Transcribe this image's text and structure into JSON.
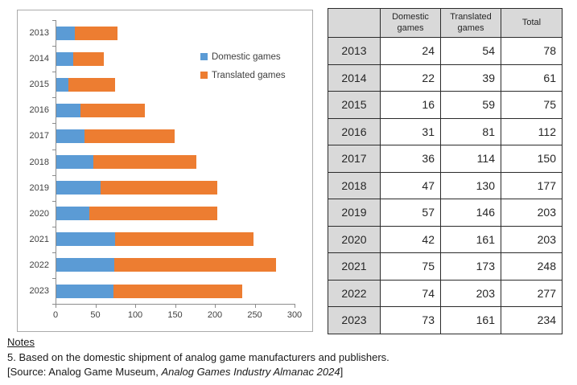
{
  "chart_data": {
    "type": "bar",
    "orientation": "horizontal",
    "stacked": true,
    "title": "",
    "xlabel": "",
    "ylabel": "",
    "categories": [
      "2013",
      "2014",
      "2015",
      "2016",
      "2017",
      "2018",
      "2019",
      "2020",
      "2021",
      "2022",
      "2023"
    ],
    "series": [
      {
        "name": "Domestic games",
        "color": "#5B9BD5",
        "values": [
          24,
          22,
          16,
          31,
          36,
          47,
          57,
          42,
          75,
          74,
          73
        ]
      },
      {
        "name": "Translated games",
        "color": "#ED7D31",
        "values": [
          54,
          39,
          59,
          81,
          114,
          130,
          146,
          161,
          173,
          203,
          161
        ]
      }
    ],
    "xlim": [
      0,
      300
    ],
    "x_ticks": [
      0,
      50,
      100,
      150,
      200,
      250,
      300
    ],
    "grid": false,
    "legend_position": "inside-top-right"
  },
  "table": {
    "columns": [
      "",
      "Domestic\ngames",
      "Translated\ngames",
      "Total"
    ],
    "rows": [
      [
        "2013",
        "24",
        "54",
        "78"
      ],
      [
        "2014",
        "22",
        "39",
        "61"
      ],
      [
        "2015",
        "16",
        "59",
        "75"
      ],
      [
        "2016",
        "31",
        "81",
        "112"
      ],
      [
        "2017",
        "36",
        "114",
        "150"
      ],
      [
        "2018",
        "47",
        "130",
        "177"
      ],
      [
        "2019",
        "57",
        "146",
        "203"
      ],
      [
        "2020",
        "42",
        "161",
        "203"
      ],
      [
        "2021",
        "75",
        "173",
        "248"
      ],
      [
        "2022",
        "74",
        "203",
        "277"
      ],
      [
        "2023",
        "73",
        "161",
        "234"
      ]
    ]
  },
  "notes": {
    "heading": "Notes",
    "line1": "5. Based on the domestic shipment of analog game manufacturers and publishers.",
    "source_prefix": "[Source: Analog Game Museum, ",
    "source_italic": "Analog Games Industry Almanac 2024",
    "source_suffix": "]"
  },
  "colors": {
    "domestic": "#5B9BD5",
    "translated": "#ED7D31",
    "panel_border": "#ababab",
    "axis": "#8c8c8c",
    "table_header_bg": "#d9d9d9",
    "chart_text": "#404040"
  }
}
